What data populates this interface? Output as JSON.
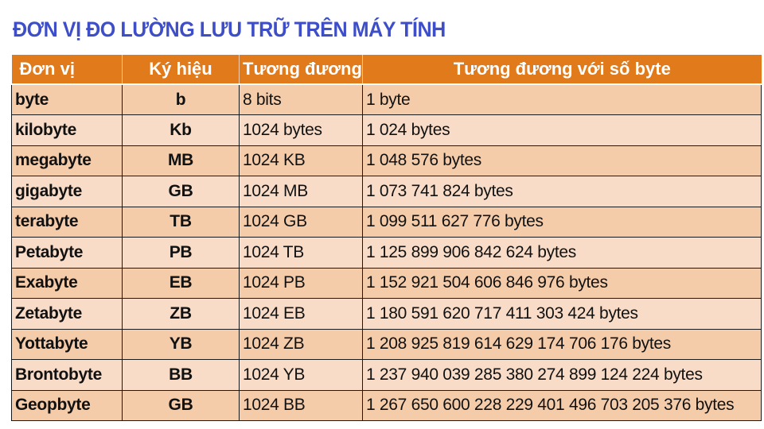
{
  "title": "ĐƠN VỊ ĐO LƯỜNG LƯU TRỮ TRÊN MÁY TÍNH",
  "colors": {
    "title": "#3d4ec8",
    "header_bg": "#e07a1a",
    "row_bg_odd": "#f5ccaa",
    "row_bg_even": "#f8dcc8"
  },
  "table": {
    "headers": [
      "Đơn vị",
      "Ký hiệu",
      "Tương đương",
      "Tương đương với số byte"
    ],
    "rows": [
      {
        "unit": "byte",
        "symbol": "b",
        "equivalent": "8 bits",
        "bytes": "1 byte"
      },
      {
        "unit": "kilobyte",
        "symbol": "Kb",
        "equivalent": "1024 bytes",
        "bytes": "1 024 bytes"
      },
      {
        "unit": "megabyte",
        "symbol": "MB",
        "equivalent": "1024 KB",
        "bytes": "1 048 576 bytes"
      },
      {
        "unit": "gigabyte",
        "symbol": "GB",
        "equivalent": "1024 MB",
        "bytes": "1 073 741 824 bytes"
      },
      {
        "unit": "terabyte",
        "symbol": "TB",
        "equivalent": "1024 GB",
        "bytes": "1 099 511 627 776 bytes"
      },
      {
        "unit": "Petabyte",
        "symbol": "PB",
        "equivalent": "1024 TB",
        "bytes": "1 125 899 906 842 624 bytes"
      },
      {
        "unit": "Exabyte",
        "symbol": "EB",
        "equivalent": "1024 PB",
        "bytes": "1 152 921 504 606 846 976 bytes"
      },
      {
        "unit": "Zetabyte",
        "symbol": "ZB",
        "equivalent": "1024 EB",
        "bytes": "1 180 591 620 717 411 303 424 bytes"
      },
      {
        "unit": "Yottabyte",
        "symbol": "YB",
        "equivalent": "1024 ZB",
        "bytes": "1 208 925 819 614 629 174 706 176 bytes"
      },
      {
        "unit": "Brontobyte",
        "symbol": "BB",
        "equivalent": "1024 YB",
        "bytes": "1 237 940 039 285 380 274 899 124 224 bytes"
      },
      {
        "unit": "Geopbyte",
        "symbol": "GB",
        "equivalent": "1024 BB",
        "bytes": "1 267 650 600 228 229 401 496 703 205 376 bytes"
      }
    ]
  }
}
